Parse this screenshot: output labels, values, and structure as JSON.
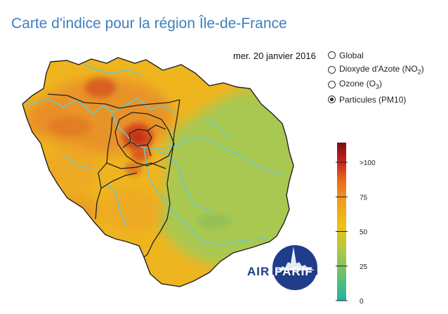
{
  "title": "Carte d'indice pour la région Île-de-France",
  "date": "mer. 20 janvier 2016",
  "pollutants": [
    {
      "label": "Global",
      "sub": "",
      "suffix": "",
      "selected": false
    },
    {
      "label": "Dioxyde d'Azote (NO",
      "sub": "2",
      "suffix": ")",
      "selected": false
    },
    {
      "label": "Ozone (O",
      "sub": "3",
      "suffix": ")",
      "selected": false
    },
    {
      "label": "Particules (PM10)",
      "sub": "",
      "suffix": "",
      "selected": true
    }
  ],
  "scale": {
    "ticks": [
      {
        "value": 100,
        "label": ">100"
      },
      {
        "value": 75,
        "label": "75"
      },
      {
        "value": 50,
        "label": "50"
      },
      {
        "value": 25,
        "label": "25"
      },
      {
        "value": 0,
        "label": "0"
      }
    ],
    "colors": [
      "#1fb3a8",
      "#5cbf74",
      "#a8c94a",
      "#f0c010",
      "#f0a020",
      "#e86a18",
      "#c8221c",
      "#7a0e18"
    ]
  },
  "logo": {
    "left": "AIR",
    "right": "PARIF"
  },
  "colors": {
    "title": "#3f7fbf",
    "green_zone": "#a9c851",
    "yellow_zone": "#efb51f",
    "orange_zone": "#e8902a",
    "red_zone": "#d6481f",
    "river": "#6cc8c8",
    "logo_blue": "#1f3d8a"
  }
}
